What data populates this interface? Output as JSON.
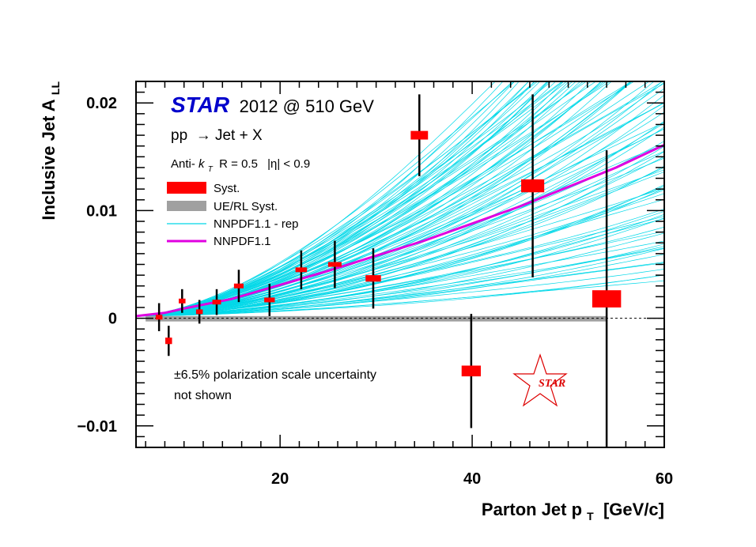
{
  "chart_data": {
    "type": "scatter",
    "title_brand": "STAR",
    "title_rest": "2012 @ 510 GeV",
    "process": "pp  → Jet + X",
    "cuts": {
      "algo_prefix": "Anti-",
      "algo_k": "k",
      "algo_sub": "T",
      "radius": " R = 0.5",
      "eta": "|η| < 0.9"
    },
    "xlabel": {
      "main": "Parton Jet p",
      "sub": "T",
      "unit": " [GeV/c]"
    },
    "ylabel": {
      "main": "Inclusive Jet A",
      "sub": "LL"
    },
    "xlim": [
      5,
      60
    ],
    "ylim": [
      -0.012,
      0.022
    ],
    "xticks": [
      20,
      40,
      60
    ],
    "xtick_labels": [
      "20",
      "40",
      "60"
    ],
    "yticks": [
      -0.01,
      0,
      0.01,
      0.02
    ],
    "ytick_labels": [
      "−0.01",
      "0",
      "0.01",
      "0.02"
    ],
    "legend": [
      {
        "label": "Syst.",
        "style": "box",
        "color": "#ff0000"
      },
      {
        "label": "UE/RL Syst.",
        "style": "box",
        "color": "#a0a0a0"
      },
      {
        "label": "NNPDF1.1 - rep",
        "style": "line",
        "color": "#00d0e0"
      },
      {
        "label": "NNPDF1.1",
        "style": "line-thick",
        "color": "#e000e0"
      }
    ],
    "note_line1": "±6.5% polarization scale uncertainty",
    "note_line2": "not shown",
    "watermark": "STAR",
    "points": [
      {
        "x": 7.4,
        "y": 0.0001,
        "stat": 0.0013,
        "syst_dx": 0.35,
        "syst_dy": 0.0001
      },
      {
        "x": 8.4,
        "y": -0.0021,
        "stat": 0.0014,
        "syst_dx": 0.35,
        "syst_dy": 0.0003
      },
      {
        "x": 9.8,
        "y": 0.0016,
        "stat": 0.0011,
        "syst_dx": 0.35,
        "syst_dy": 0.0001
      },
      {
        "x": 11.6,
        "y": 0.0006,
        "stat": 0.0011,
        "syst_dx": 0.35,
        "syst_dy": 0.0001
      },
      {
        "x": 13.4,
        "y": 0.0015,
        "stat": 0.0012,
        "syst_dx": 0.45,
        "syst_dy": 0.0001
      },
      {
        "x": 15.7,
        "y": 0.003,
        "stat": 0.0015,
        "syst_dx": 0.5,
        "syst_dy": 0.0001
      },
      {
        "x": 18.9,
        "y": 0.0017,
        "stat": 0.0015,
        "syst_dx": 0.55,
        "syst_dy": 0.00015
      },
      {
        "x": 22.2,
        "y": 0.0045,
        "stat": 0.0018,
        "syst_dx": 0.6,
        "syst_dy": 0.0002
      },
      {
        "x": 25.7,
        "y": 0.005,
        "stat": 0.0022,
        "syst_dx": 0.7,
        "syst_dy": 0.0002
      },
      {
        "x": 29.7,
        "y": 0.0037,
        "stat": 0.0028,
        "syst_dx": 0.8,
        "syst_dy": 0.0003
      },
      {
        "x": 34.5,
        "y": 0.017,
        "stat": 0.0038,
        "syst_dx": 0.9,
        "syst_dy": 0.0004
      },
      {
        "x": 39.9,
        "y": -0.0049,
        "stat": 0.0053,
        "syst_dx": 1.0,
        "syst_dy": 0.0005
      },
      {
        "x": 46.3,
        "y": 0.0123,
        "stat": 0.0085,
        "syst_dx": 1.2,
        "syst_dy": 0.0006
      },
      {
        "x": 54.0,
        "y": 0.0018,
        "stat": 0.0138,
        "syst_dx": 1.5,
        "syst_dy": 0.0008
      }
    ],
    "ue_band": {
      "x_min": 6.0,
      "x_max": 54.0,
      "y_low": -0.0003,
      "y_high": 0.0002
    },
    "central_curve": {
      "x": [
        5,
        8,
        10,
        15,
        20,
        25,
        30,
        35,
        40,
        45,
        50,
        55,
        60
      ],
      "y": [
        0.0002,
        0.0005,
        0.0009,
        0.0018,
        0.0031,
        0.0044,
        0.0058,
        0.0072,
        0.0088,
        0.0104,
        0.0122,
        0.014,
        0.0161
      ]
    },
    "replica_exponent_range": [
      0.0035,
      0.0375
    ],
    "replica_count": 100
  },
  "colors": {
    "syst": "#ff0000",
    "ue": "#a0a0a0",
    "replica": "#00d8e8",
    "central": "#e000e0",
    "brand": "#0000cc",
    "watermark": "#dd0000"
  }
}
